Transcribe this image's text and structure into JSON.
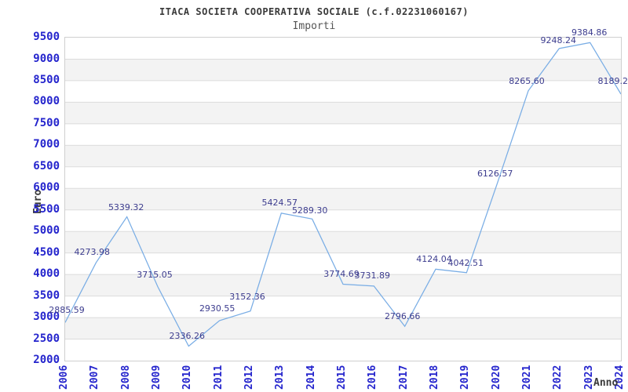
{
  "header": {
    "title": "ITACA SOCIETA COOPERATIVA SOCIALE (c.f.02231060167)",
    "subtitle": "Importi"
  },
  "axes": {
    "y_label": "Euro",
    "x_label": "Anno",
    "y_ticks": [
      9500,
      9000,
      8500,
      8000,
      7500,
      7000,
      6500,
      6000,
      5500,
      5000,
      4500,
      4000,
      3500,
      3000,
      2500,
      2000
    ]
  },
  "chart_data": {
    "type": "line",
    "title": "ITACA SOCIETA COOPERATIVA SOCIALE (c.f.02231060167)",
    "subtitle": "Importi",
    "xlabel": "Anno",
    "ylabel": "Euro",
    "x": [
      2006,
      2007,
      2008,
      2009,
      2010,
      2011,
      2012,
      2013,
      2014,
      2015,
      2016,
      2017,
      2018,
      2019,
      2020,
      2021,
      2022,
      2023,
      2024
    ],
    "values": [
      2885.59,
      4273.98,
      5339.32,
      3715.05,
      2336.26,
      2930.55,
      3152.36,
      5424.57,
      5289.3,
      3774.69,
      3731.89,
      2796.66,
      4124.04,
      4042.51,
      6126.57,
      8265.6,
      9248.24,
      9384.86,
      8189.2
    ],
    "ylim": [
      2000,
      9500
    ],
    "y_tick_step": 500,
    "grid": "alternating horizontal bands, gridline each 500",
    "legend": "none",
    "colors": {
      "line": "#79ade5",
      "tick_labels": "#2525cd",
      "value_labels": "#3c3c8e",
      "band": "#f3f3f3",
      "gridline": "#dcdcdc",
      "plot_border": "#cfcfcf"
    }
  },
  "value_labels": [
    {
      "text": "2885.59",
      "dx": 3,
      "gap": 8
    },
    {
      "text": "4273.98",
      "dx": -4,
      "gap": 6
    },
    {
      "text": "5339.32",
      "dx": 0,
      "gap": 5
    },
    {
      "text": "3715.05",
      "dx": -3,
      "gap": 8
    },
    {
      "text": "2336.26",
      "dx": -1,
      "gap": 6
    },
    {
      "text": "2930.55",
      "dx": -2,
      "gap": 8
    },
    {
      "text": "3152.36",
      "dx": -3,
      "gap": 11
    },
    {
      "text": "5424.57",
      "dx": -1,
      "gap": 6
    },
    {
      "text": "5289.30",
      "dx": -2,
      "gap": 3
    },
    {
      "text": "3774.69",
      "dx": -1,
      "gap": 6
    },
    {
      "text": "3731.89",
      "dx": -1,
      "gap": 6
    },
    {
      "text": "2796.66",
      "dx": -2,
      "gap": 5
    },
    {
      "text": "4124.04",
      "dx": -1,
      "gap": 5
    },
    {
      "text": "4042.51",
      "dx": 0,
      "gap": 5
    },
    {
      "text": "6126.57",
      "dx": -2,
      "gap": 4
    },
    {
      "text": "8265.60",
      "dx": -1,
      "gap": 5
    },
    {
      "text": "9248.24",
      "dx": 0,
      "gap": 3
    },
    {
      "text": "9384.86",
      "dx": 0,
      "gap": 5
    },
    {
      "text": "8189.2",
      "dx": 0,
      "gap": 9,
      "flushRight": true
    }
  ]
}
